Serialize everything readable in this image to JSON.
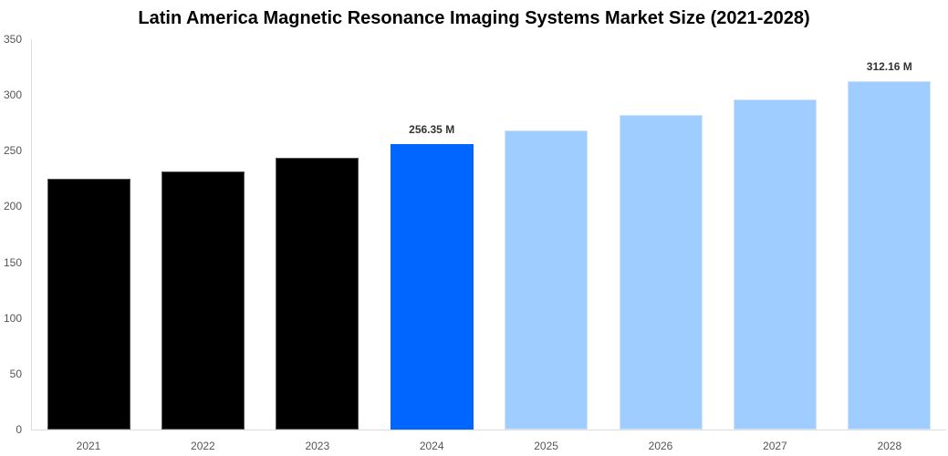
{
  "chart_data": {
    "type": "bar",
    "title": "Latin America Magnetic Resonance Imaging Systems Market Size (2021-2028)",
    "xlabel": "",
    "ylabel": "",
    "categories": [
      "2021",
      "2022",
      "2023",
      "2024",
      "2025",
      "2026",
      "2027",
      "2028"
    ],
    "values": [
      224.9,
      231.4,
      243.7,
      256.35,
      268.6,
      282.1,
      296.4,
      312.16
    ],
    "colors": [
      "#000000",
      "#000000",
      "#000000",
      "#0066ff",
      "#a0cdff",
      "#a0cdff",
      "#a0cdff",
      "#a0cdff"
    ],
    "data_labels": [
      {
        "index": 3,
        "text": "256.35 M"
      },
      {
        "index": 7,
        "text": "312.16 M"
      }
    ],
    "ylim": [
      0,
      350
    ],
    "yticks": [
      "0",
      "50",
      "100",
      "150",
      "200",
      "250",
      "300",
      "350"
    ],
    "grid": false,
    "legend": "none"
  }
}
